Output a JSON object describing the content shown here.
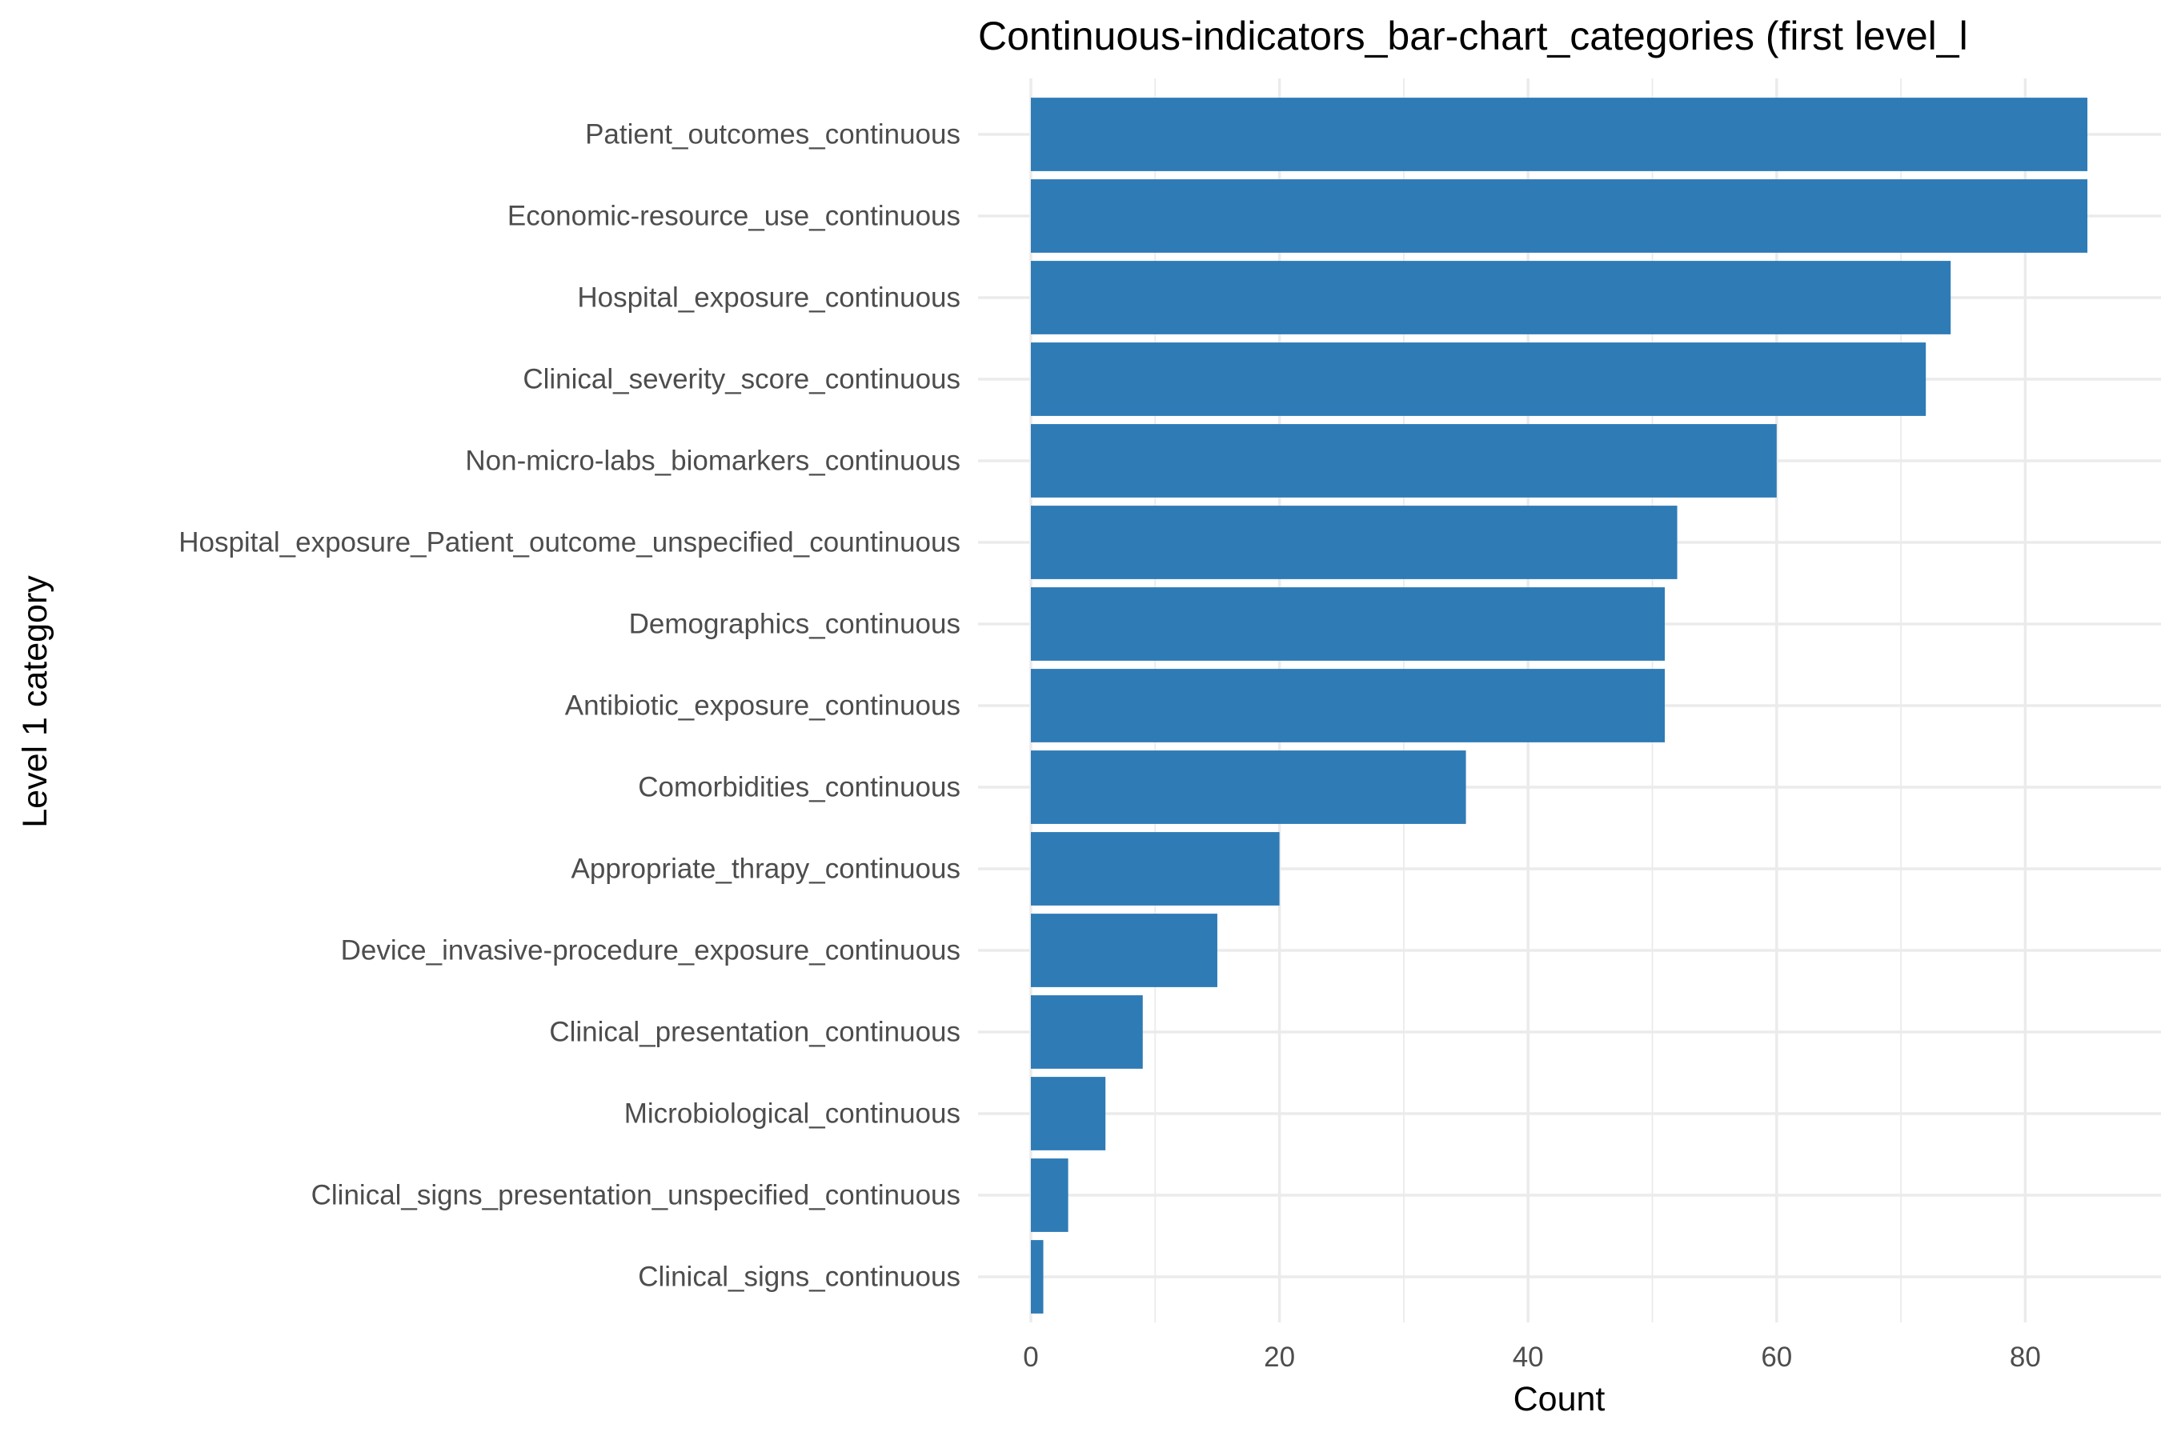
{
  "chart_data": {
    "type": "bar",
    "orientation": "horizontal",
    "title": "Continuous-indicators_bar-chart_categories (first level_l",
    "xlabel": "Count",
    "ylabel": "Level 1 category",
    "xlim": [
      0,
      89
    ],
    "x_ticks": [
      0,
      20,
      40,
      60,
      80
    ],
    "grid": true,
    "bar_color": "#2e7bb6",
    "categories": [
      "Patient_outcomes_continuous",
      "Economic-resource_use_continuous",
      "Hospital_exposure_continuous",
      "Clinical_severity_score_continuous",
      "Non-micro-labs_biomarkers_continuous",
      "Hospital_exposure_Patient_outcome_unspecified_countinuous",
      "Demographics_continuous",
      "Antibiotic_exposure_continuous",
      "Comorbidities_continuous",
      "Appropriate_thrapy_continuous",
      "Device_invasive-procedure_exposure_continuous",
      "Clinical_presentation_continuous",
      "Microbiological_continuous",
      "Clinical_signs_presentation_unspecified_continuous",
      "Clinical_signs_continuous"
    ],
    "values": [
      85,
      85,
      74,
      72,
      60,
      52,
      51,
      51,
      35,
      20,
      15,
      9,
      6,
      3,
      1
    ]
  }
}
